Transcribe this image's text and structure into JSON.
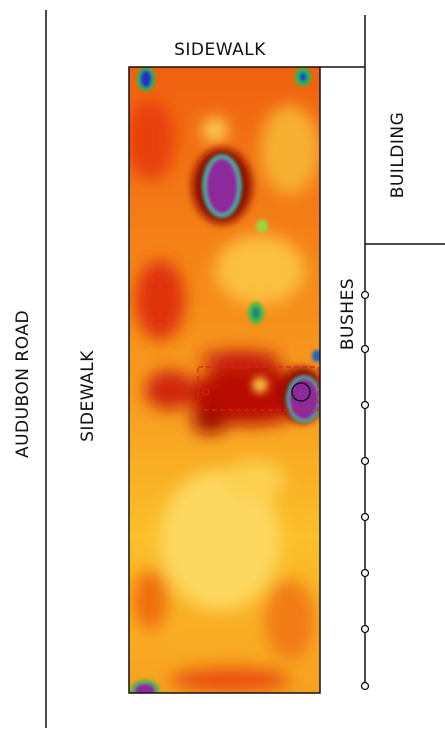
{
  "labels": {
    "top_sidewalk": "SIDEWALK",
    "building": "BUILDING",
    "bushes": "BUSHES",
    "road": "AUDUBON ROAD",
    "left_sidewalk": "SIDEWALK"
  }
}
